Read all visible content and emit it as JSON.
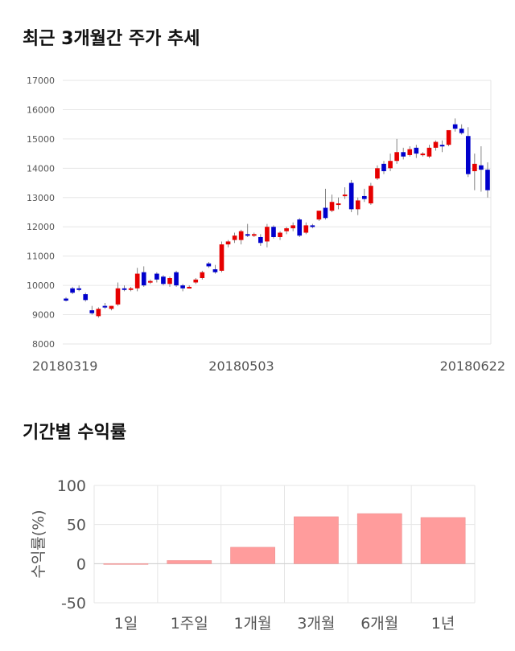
{
  "titles": {
    "price_trend": "최근 3개월간 주가 추세",
    "period_return": "기간별 수익률"
  },
  "colors": {
    "up": "#e60000",
    "down": "#0000cc",
    "bar": "#ff9c9c",
    "grid": "#e6e6e6"
  },
  "chart_data": [
    {
      "type": "candlestick",
      "title": "최근 3개월간 주가 추세",
      "y_ticks": [
        "17000",
        "16000",
        "15000",
        "14000",
        "13000",
        "12000",
        "11000",
        "10000",
        "9000",
        "8000"
      ],
      "ylim": [
        8000,
        17000
      ],
      "x_tick_labels": [
        "20180319",
        "20180503",
        "20180622"
      ],
      "grid": true,
      "candles": [
        [
          9550,
          9600,
          9480,
          9450
        ],
        [
          9900,
          9950,
          9750,
          9700
        ],
        [
          9900,
          10000,
          9850,
          9800
        ],
        [
          9700,
          9750,
          9500,
          9450
        ],
        [
          9150,
          9300,
          9050,
          9000
        ],
        [
          8950,
          9250,
          9200,
          8900
        ],
        [
          9300,
          9400,
          9250,
          9200
        ],
        [
          9200,
          9300,
          9300,
          9150
        ],
        [
          9350,
          10100,
          9900,
          9300
        ],
        [
          9900,
          10000,
          9850,
          9800
        ],
        [
          9850,
          9950,
          9900,
          9800
        ],
        [
          9900,
          10600,
          10400,
          9800
        ],
        [
          10450,
          10650,
          10000,
          9950
        ],
        [
          10100,
          10200,
          10150,
          10050
        ],
        [
          10400,
          10450,
          10200,
          10100
        ],
        [
          10300,
          10350,
          10050,
          10000
        ],
        [
          10050,
          10300,
          10250,
          9950
        ],
        [
          10450,
          10500,
          10000,
          9950
        ],
        [
          10000,
          10050,
          9900,
          9800
        ],
        [
          9950,
          10000,
          9950,
          9900
        ],
        [
          10100,
          10250,
          10200,
          10050
        ],
        [
          10250,
          10500,
          10450,
          10200
        ],
        [
          10750,
          10800,
          10650,
          10600
        ],
        [
          10550,
          10700,
          10450,
          10400
        ],
        [
          10500,
          11500,
          11400,
          10450
        ],
        [
          11400,
          11550,
          11500,
          11300
        ],
        [
          11550,
          11800,
          11700,
          11450
        ],
        [
          11550,
          11900,
          11850,
          11400
        ],
        [
          11750,
          12100,
          11700,
          11650
        ],
        [
          11700,
          11800,
          11750,
          11650
        ],
        [
          11650,
          11750,
          11450,
          11350
        ],
        [
          11500,
          12100,
          12000,
          11300
        ],
        [
          12000,
          12050,
          11650,
          11600
        ],
        [
          11650,
          11850,
          11800,
          11550
        ],
        [
          11850,
          12000,
          11950,
          11750
        ],
        [
          11950,
          12150,
          12050,
          11850
        ],
        [
          12250,
          12300,
          11700,
          11650
        ],
        [
          11800,
          12150,
          12050,
          11750
        ],
        [
          12050,
          12100,
          12000,
          11950
        ],
        [
          12250,
          12500,
          12550,
          12200
        ],
        [
          12650,
          13300,
          12300,
          12250
        ],
        [
          12550,
          13100,
          12850,
          12500
        ],
        [
          12750,
          13000,
          12800,
          12600
        ],
        [
          13050,
          13350,
          13100,
          12950
        ],
        [
          13500,
          13600,
          12600,
          12500
        ],
        [
          12600,
          13000,
          12900,
          12400
        ],
        [
          13050,
          13300,
          12950,
          12850
        ],
        [
          12800,
          13500,
          13400,
          12750
        ],
        [
          13650,
          14100,
          14000,
          13600
        ],
        [
          14150,
          14250,
          13900,
          13800
        ],
        [
          14000,
          14500,
          14250,
          13900
        ],
        [
          14250,
          15000,
          14550,
          14150
        ],
        [
          14550,
          14700,
          14400,
          14300
        ],
        [
          14450,
          14750,
          14650,
          14400
        ],
        [
          14700,
          14800,
          14500,
          14350
        ],
        [
          14450,
          14550,
          14500,
          14400
        ],
        [
          14400,
          14800,
          14700,
          14350
        ],
        [
          14700,
          14950,
          14900,
          14600
        ],
        [
          14800,
          14950,
          14750,
          14550
        ],
        [
          14800,
          15250,
          15300,
          14750
        ],
        [
          15500,
          15700,
          15350,
          15250
        ],
        [
          15350,
          15500,
          15200,
          15150
        ],
        [
          15100,
          15400,
          13800,
          13700
        ],
        [
          13900,
          14500,
          14150,
          13250
        ],
        [
          14100,
          14750,
          13950,
          13200
        ],
        [
          13950,
          14200,
          13250,
          13000
        ]
      ]
    },
    {
      "type": "bar",
      "title": "기간별 수익률",
      "ylabel": "수익률(%)",
      "categories": [
        "1일",
        "1주일",
        "1개월",
        "3개월",
        "6개월",
        "1년"
      ],
      "values": [
        -0.5,
        4,
        21,
        60,
        64,
        59
      ],
      "y_ticks": [
        "100",
        "50",
        "0",
        "-50"
      ],
      "ylim": [
        -50,
        100
      ],
      "grid": true
    }
  ]
}
